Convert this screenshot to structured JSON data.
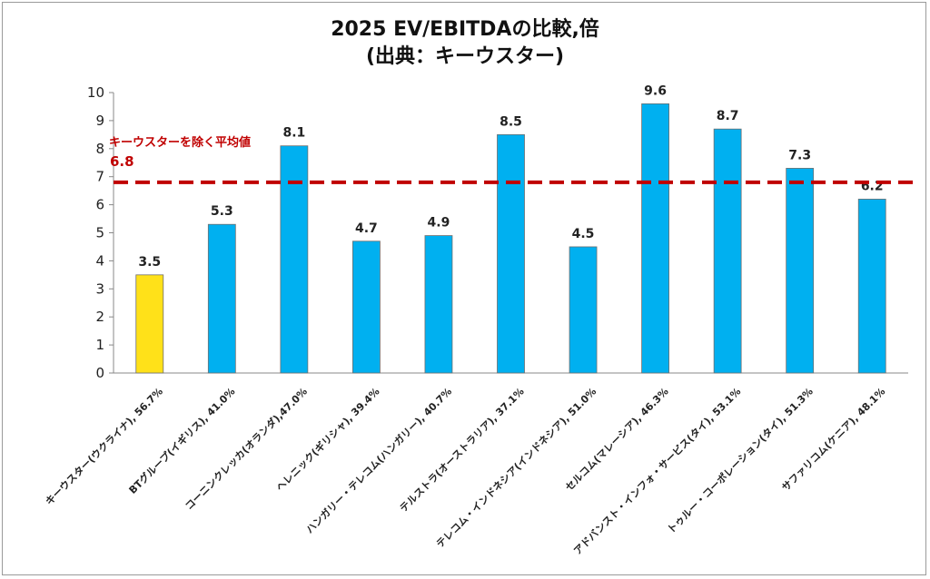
{
  "chart_data": {
    "type": "bar",
    "title": "2025 EV/EBITDAの比較,倍",
    "subtitle": "(出典：キーウスター)",
    "categories": [
      "キーウスター(ウクライナ), 56.7%",
      "BTグループ(イギリス), 41.0%",
      "コーニンクレッカ(オランダ),47.0%",
      "ヘレニック(ギリシャ), 39.4%",
      "ハンガリー・テレコム(ハンガリー), 40.7%",
      "テルストラ(オーストラリア), 37.1%",
      "テレコム・インドネシア(インドネシア), 51.0%",
      "セルコム(マレーシア), 46.3%",
      "アドバンスト・インフォ・サービス(タイ), 53.1%",
      "トゥルー・コーポレーション(タイ), 51.3%",
      "サファリコム(ケニア), 48.1%"
    ],
    "values": [
      3.5,
      5.3,
      8.1,
      4.7,
      4.9,
      8.5,
      4.5,
      9.6,
      8.7,
      7.3,
      6.2
    ],
    "data_labels": [
      "3.5",
      "5.3",
      "8.1",
      "4.7",
      "4.9",
      "8.5",
      "4.5",
      "9.6",
      "8.7",
      "7.3",
      "6.2"
    ],
    "highlight_index": 0,
    "ylim": [
      0,
      10
    ],
    "yticks": [
      "0",
      "1",
      "2",
      "3",
      "4",
      "5",
      "6",
      "7",
      "8",
      "9",
      "10"
    ],
    "grid": false,
    "reference_line": {
      "label": "キーウスターを除く平均値",
      "value_label": "6.8",
      "value": 6.8,
      "color": "#c00000",
      "style": "dashed"
    },
    "colors": {
      "highlight": "#ffe119",
      "bar": "#00b0f0",
      "bar_edge": "#6f6f6f"
    }
  }
}
